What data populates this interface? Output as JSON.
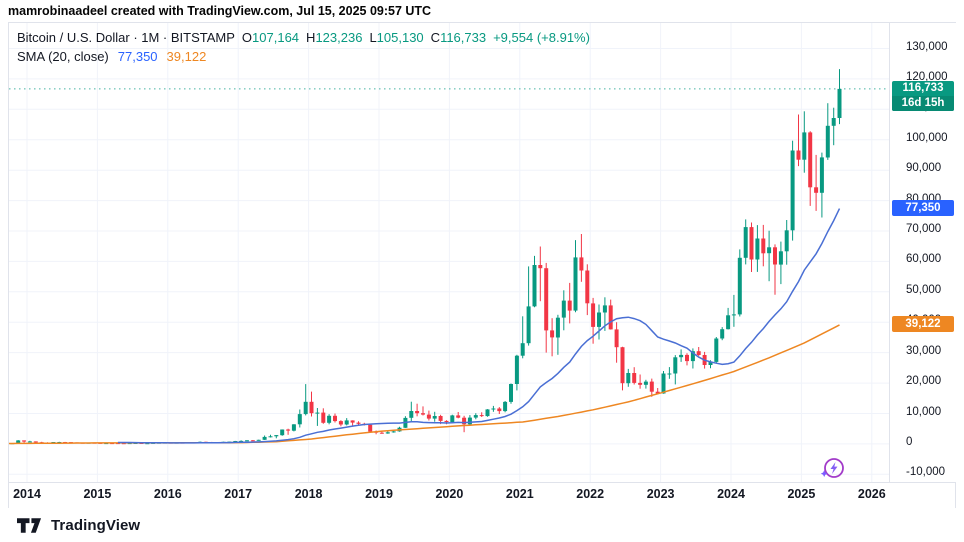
{
  "topbar": {
    "text": "mamrobinaadeel created with TradingView.com, Jul 15, 2025 09:57 UTC"
  },
  "legend": {
    "symbol_full": "Bitcoin / U.S. Dollar · 1M · BITSTAMP",
    "ohlc": [
      {
        "label": "O",
        "value": "107,164"
      },
      {
        "label": "H",
        "value": "123,236"
      },
      {
        "label": "L",
        "value": "105,130"
      },
      {
        "label": "C",
        "value": "116,733"
      }
    ],
    "change": "+9,554 (+8.91%)",
    "sma_title": "SMA (20, close)",
    "sma_fast_value": "77,350",
    "sma_slow_value": "39,122"
  },
  "price_axis": {
    "labels": [
      {
        "text": "130,000",
        "value": 130000
      },
      {
        "text": "120,000",
        "value": 120000
      },
      {
        "text": "110,000",
        "value": 110000
      },
      {
        "text": "100,000",
        "value": 100000
      },
      {
        "text": "90,000",
        "value": 90000
      },
      {
        "text": "80,000",
        "value": 80000
      },
      {
        "text": "70,000",
        "value": 70000
      },
      {
        "text": "60,000",
        "value": 60000
      },
      {
        "text": "50,000",
        "value": 50000
      },
      {
        "text": "40,000",
        "value": 40000
      },
      {
        "text": "30,000",
        "value": 30000
      },
      {
        "text": "20,000",
        "value": 20000
      },
      {
        "text": "10,000",
        "value": 10000
      },
      {
        "text": "0",
        "value": 0
      },
      {
        "text": "-10,000",
        "value": -10000
      }
    ]
  },
  "time_axis": {
    "years": [
      "2014",
      "2015",
      "2016",
      "2017",
      "2018",
      "2019",
      "2020",
      "2021",
      "2022",
      "2023",
      "2024",
      "2025",
      "2026"
    ]
  },
  "badges": {
    "last": {
      "price_text": "116,733",
      "countdown": "16d 15h",
      "value": 116733,
      "color": "#089981",
      "countdown_color": "#078a73"
    },
    "sma_fast": {
      "text": "77,350",
      "value": 77350,
      "color": "#2962ff"
    },
    "sma_slow": {
      "text": "39,122",
      "value": 39122,
      "color": "#ee8722"
    }
  },
  "footer": {
    "brand": "TradingView"
  },
  "icons": {
    "boost": "lightning-boost-icon",
    "brand": "tradingview-logo"
  },
  "chart_data": {
    "type": "candlestick",
    "title": "Bitcoin / U.S. Dollar, 1M, BITSTAMP",
    "interval": "1M",
    "start_month": "2013-09",
    "ylim": [
      -10000,
      130000
    ],
    "y_grid_step": 10000,
    "grid": true,
    "legend_position": "top-left",
    "up_color": "#089981",
    "down_color": "#f23645",
    "price_line": {
      "value": 116733,
      "style": "dotted",
      "color": "#089981"
    },
    "last_bar": {
      "open": 107164,
      "high": 123236,
      "low": 105130,
      "close": 116733,
      "change": 9554,
      "change_pct": 8.91
    },
    "sma_fast": {
      "label": "SMA (20, close)",
      "length": 20,
      "color": "#4a6fd4",
      "last_value": 77350
    },
    "sma_slow": {
      "color": "#ee8722",
      "last_value": 39122,
      "anchors": [
        [
          0,
          120
        ],
        [
          16,
          330
        ],
        [
          28,
          330
        ],
        [
          40,
          420
        ],
        [
          46,
          700
        ],
        [
          52,
          1600
        ],
        [
          58,
          3000
        ],
        [
          64,
          4200
        ],
        [
          76,
          5800
        ],
        [
          88,
          7200
        ],
        [
          94,
          9000
        ],
        [
          100,
          11200
        ],
        [
          106,
          13800
        ],
        [
          112,
          17000
        ],
        [
          118,
          20300
        ],
        [
          124,
          23800
        ],
        [
          130,
          28300
        ],
        [
          136,
          33200
        ],
        [
          142,
          39122
        ]
      ]
    },
    "ohlc": [
      [
        124,
        147,
        117,
        141
      ],
      [
        141,
        233,
        122,
        211
      ],
      [
        211,
        1242,
        205,
        1130
      ],
      [
        1130,
        1155,
        382,
        732
      ],
      [
        732,
        1015,
        720,
        816
      ],
      [
        816,
        830,
        400,
        550
      ],
      [
        550,
        700,
        420,
        454
      ],
      [
        454,
        550,
        340,
        446
      ],
      [
        446,
        630,
        425,
        622
      ],
      [
        622,
        680,
        540,
        635
      ],
      [
        635,
        660,
        560,
        585
      ],
      [
        585,
        600,
        455,
        480
      ],
      [
        480,
        495,
        365,
        387
      ],
      [
        387,
        415,
        275,
        338
      ],
      [
        338,
        460,
        320,
        376
      ],
      [
        376,
        384,
        285,
        318
      ],
      [
        318,
        321,
        152,
        217
      ],
      [
        217,
        265,
        210,
        254
      ],
      [
        254,
        300,
        236,
        244
      ],
      [
        244,
        262,
        210,
        236
      ],
      [
        236,
        248,
        226,
        230
      ],
      [
        230,
        268,
        220,
        263
      ],
      [
        263,
        318,
        255,
        284
      ],
      [
        284,
        288,
        198,
        230
      ],
      [
        230,
        246,
        223,
        236
      ],
      [
        236,
        334,
        235,
        314
      ],
      [
        314,
        502,
        295,
        377
      ],
      [
        377,
        467,
        350,
        430
      ],
      [
        430,
        435,
        350,
        368
      ],
      [
        368,
        441,
        365,
        437
      ],
      [
        437,
        444,
        383,
        416
      ],
      [
        416,
        470,
        410,
        448
      ],
      [
        448,
        550,
        440,
        531
      ],
      [
        531,
        780,
        520,
        673
      ],
      [
        673,
        706,
        590,
        624
      ],
      [
        624,
        640,
        465,
        575
      ],
      [
        575,
        629,
        565,
        610
      ],
      [
        610,
        720,
        600,
        700
      ],
      [
        700,
        755,
        670,
        745
      ],
      [
        745,
        982,
        740,
        963
      ],
      [
        963,
        1177,
        750,
        970
      ],
      [
        970,
        1225,
        920,
        1190
      ],
      [
        1190,
        1290,
        890,
        1080
      ],
      [
        1080,
        1365,
        1060,
        1350
      ],
      [
        1350,
        2760,
        1320,
        2300
      ],
      [
        2300,
        2980,
        2100,
        2480
      ],
      [
        2480,
        2930,
        1830,
        2875
      ],
      [
        2875,
        4750,
        2650,
        4735
      ],
      [
        4735,
        4980,
        2980,
        4360
      ],
      [
        4360,
        6470,
        4110,
        6450
      ],
      [
        6450,
        11300,
        5380,
        9800
      ],
      [
        9800,
        19666,
        9380,
        13850
      ],
      [
        13850,
        17200,
        9000,
        10100
      ],
      [
        10100,
        11790,
        5920,
        10300
      ],
      [
        10300,
        11700,
        6600,
        6940
      ],
      [
        6940,
        9760,
        6430,
        9240
      ],
      [
        9240,
        9990,
        7040,
        7490
      ],
      [
        7490,
        7780,
        5780,
        6380
      ],
      [
        6380,
        8480,
        6070,
        7730
      ],
      [
        7730,
        7760,
        5880,
        7010
      ],
      [
        7010,
        7410,
        6100,
        6620
      ],
      [
        6620,
        6940,
        6050,
        6300
      ],
      [
        6300,
        6540,
        3620,
        4040
      ],
      [
        4040,
        4410,
        3150,
        3690
      ],
      [
        3690,
        4110,
        3350,
        3440
      ],
      [
        3440,
        4190,
        3330,
        3820
      ],
      [
        3820,
        4290,
        3670,
        4100
      ],
      [
        4100,
        5620,
        4010,
        5320
      ],
      [
        5320,
        9090,
        5270,
        8560
      ],
      [
        8560,
        13880,
        7430,
        10800
      ],
      [
        10800,
        13200,
        9080,
        10080
      ],
      [
        10080,
        12320,
        9320,
        9630
      ],
      [
        9630,
        10950,
        7700,
        8310
      ],
      [
        8310,
        10540,
        7290,
        9160
      ],
      [
        9160,
        9550,
        6520,
        7550
      ],
      [
        7550,
        7790,
        6430,
        7190
      ],
      [
        7190,
        9580,
        6850,
        9350
      ],
      [
        9350,
        10500,
        8400,
        8600
      ],
      [
        8600,
        9220,
        3850,
        6440
      ],
      [
        6440,
        9470,
        6140,
        8630
      ],
      [
        8630,
        10080,
        8100,
        9450
      ],
      [
        9450,
        10380,
        8830,
        9140
      ],
      [
        9140,
        11450,
        8900,
        11350
      ],
      [
        11350,
        12480,
        10550,
        11650
      ],
      [
        11650,
        12080,
        9810,
        10780
      ],
      [
        10780,
        14100,
        10370,
        13800
      ],
      [
        13800,
        19860,
        13200,
        19700
      ],
      [
        19700,
        29300,
        17570,
        29000
      ],
      [
        29000,
        41950,
        28130,
        33100
      ],
      [
        33100,
        58350,
        32300,
        45200
      ],
      [
        45200,
        61800,
        44950,
        58800
      ],
      [
        58800,
        64900,
        46930,
        57750
      ],
      [
        57750,
        59500,
        30000,
        37300
      ],
      [
        37300,
        41330,
        28800,
        35000
      ],
      [
        35000,
        42450,
        29300,
        41500
      ],
      [
        41500,
        50500,
        37330,
        47100
      ],
      [
        47100,
        52920,
        39600,
        43800
      ],
      [
        43800,
        66990,
        43280,
        61300
      ],
      [
        61300,
        69000,
        53300,
        57000
      ],
      [
        57000,
        59050,
        42330,
        46200
      ],
      [
        46200,
        47990,
        32950,
        38480
      ],
      [
        38480,
        45820,
        34320,
        43200
      ],
      [
        43200,
        48190,
        37160,
        45540
      ],
      [
        45540,
        47450,
        37580,
        37650
      ],
      [
        37650,
        40020,
        26700,
        31790
      ],
      [
        31790,
        31960,
        17600,
        19940
      ],
      [
        19940,
        24670,
        18780,
        23300
      ],
      [
        23300,
        25200,
        19520,
        20050
      ],
      [
        20050,
        22800,
        18130,
        19430
      ],
      [
        19430,
        21080,
        18190,
        20490
      ],
      [
        20490,
        21480,
        15480,
        17160
      ],
      [
        17160,
        18390,
        16260,
        16540
      ],
      [
        16540,
        23960,
        16490,
        23130
      ],
      [
        23130,
        25250,
        21400,
        23140
      ],
      [
        23140,
        29180,
        19550,
        28480
      ],
      [
        28480,
        31050,
        26950,
        29250
      ],
      [
        29250,
        29830,
        25810,
        27220
      ],
      [
        27220,
        31400,
        24800,
        30480
      ],
      [
        30480,
        31840,
        28860,
        29230
      ],
      [
        29230,
        30230,
        24740,
        25940
      ],
      [
        25940,
        27480,
        24900,
        26970
      ],
      [
        26970,
        35150,
        26540,
        34660
      ],
      [
        34660,
        38410,
        34080,
        37720
      ],
      [
        37720,
        44700,
        37620,
        42280
      ],
      [
        42280,
        48970,
        38500,
        42580
      ],
      [
        42580,
        63930,
        41880,
        61200
      ],
      [
        61200,
        73800,
        59000,
        71280
      ],
      [
        71280,
        72790,
        56500,
        60640
      ],
      [
        60640,
        71950,
        56550,
        67530
      ],
      [
        67530,
        71990,
        58400,
        62670
      ],
      [
        62670,
        70080,
        53500,
        64620
      ],
      [
        64620,
        65600,
        49050,
        58970
      ],
      [
        58970,
        66500,
        52550,
        63330
      ],
      [
        63330,
        73620,
        58900,
        70220
      ],
      [
        70220,
        99700,
        66840,
        96450
      ],
      [
        96450,
        108300,
        91320,
        93430
      ],
      [
        93430,
        109350,
        89160,
        102400
      ],
      [
        102400,
        102800,
        78260,
        84350
      ],
      [
        84350,
        95000,
        76600,
        82550
      ],
      [
        82550,
        95770,
        74420,
        94180
      ],
      [
        94180,
        112000,
        93370,
        104600
      ],
      [
        104600,
        110530,
        98200,
        107164
      ],
      [
        107164,
        123236,
        105130,
        116733
      ]
    ]
  }
}
